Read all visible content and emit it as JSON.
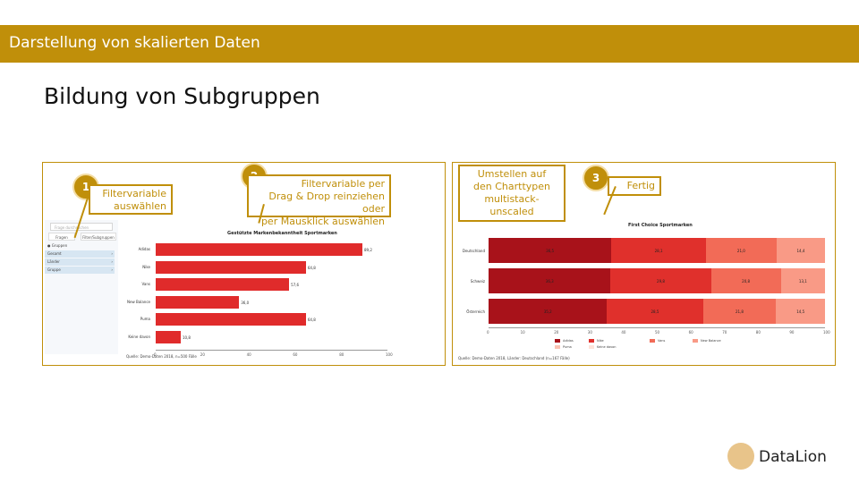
{
  "header": {
    "title": "Darstellung von skalierten Daten"
  },
  "slide": {
    "title": "Bildung von Subgruppen"
  },
  "left_panel": {
    "sidebar": {
      "search_placeholder": "Frage durchsuchen",
      "tabs": [
        "Fragen",
        "Filter/Subgruppen"
      ],
      "items": [
        {
          "label": "● Gruppen",
          "selected": false
        },
        {
          "label": "Gesamt",
          "selected": true
        },
        {
          "label": "Länder",
          "selected": true
        },
        {
          "label": "Gruppe",
          "selected": true
        }
      ]
    },
    "chart_data": {
      "type": "bar",
      "title": "Gestützte Markenbekanntheit Sportmarken",
      "categories": [
        "Adidas",
        "Nike",
        "Vans",
        "New Balance",
        "Puma",
        "Keine davon"
      ],
      "values": [
        89.2,
        64.8,
        57.6,
        36.0,
        64.8,
        10.8
      ],
      "value_labels": [
        "89,2",
        "64,8",
        "57,6",
        "36,0",
        "64,8",
        "10,8"
      ],
      "xlim": [
        0,
        100
      ],
      "ticks": [
        "0",
        "20",
        "40",
        "60",
        "80",
        "100"
      ],
      "source": "Quelle: Demo-Daten 2018, n=500 Fälle",
      "bar_color": "#e02b2b"
    }
  },
  "right_panel": {
    "chart_data": {
      "type": "bar",
      "stacked": true,
      "title": "First Choice Sportmarken",
      "categories": [
        "Deutschland",
        "Schweiz",
        "Österreich"
      ],
      "series": [
        {
          "name": "Adidas",
          "color": "#a8121a",
          "values": [
            36.5,
            36.3,
            35.2
          ],
          "labels": [
            "36,5",
            "36,3",
            "35,2"
          ]
        },
        {
          "name": "Nike",
          "color": "#e0302c",
          "values": [
            28.1,
            29.8,
            28.5
          ],
          "labels": [
            "28,1",
            "29,8",
            "28,5"
          ]
        },
        {
          "name": "Vans",
          "color": "#f26b57",
          "values": [
            21.0,
            20.8,
            21.8
          ],
          "labels": [
            "21,0",
            "20,8",
            "21,8"
          ]
        },
        {
          "name": "New Balance",
          "color": "#f99a86",
          "values": [
            14.4,
            13.1,
            14.5
          ],
          "labels": [
            "14,4",
            "13,1",
            "14,5"
          ]
        },
        {
          "name": "Puma",
          "color": "#fbc2b2",
          "values": [
            0,
            0,
            0
          ],
          "labels": [
            "",
            "",
            ""
          ]
        },
        {
          "name": "Keine davon",
          "color": "#fde3da",
          "values": [
            0,
            0,
            0
          ],
          "labels": [
            "",
            "",
            ""
          ]
        }
      ],
      "xlim": [
        0,
        100
      ],
      "ticks": [
        "0",
        "10",
        "20",
        "30",
        "40",
        "50",
        "60",
        "70",
        "80",
        "90",
        "100"
      ],
      "source": "Quelle: Demo-Daten 2018, Länder: Deutschland (n=167 Fälle)"
    }
  },
  "callouts": [
    {
      "number": "1",
      "text_lines": [
        "Filtervariable",
        "auswählen"
      ]
    },
    {
      "number": "2",
      "text_lines": [
        "Filtervariable per",
        "Drag & Drop reinziehen oder",
        "per Mausklick auswählen"
      ]
    },
    {
      "number": "3",
      "text_lines": [
        "Fertig"
      ]
    },
    {
      "number": "",
      "text_lines": [
        "Umstellen auf",
        "den Charttypen",
        "multistack-",
        "unscaled"
      ]
    }
  ],
  "footer": {
    "logo_text": "DataLion"
  },
  "colors": {
    "accent": "#c08f0a"
  }
}
